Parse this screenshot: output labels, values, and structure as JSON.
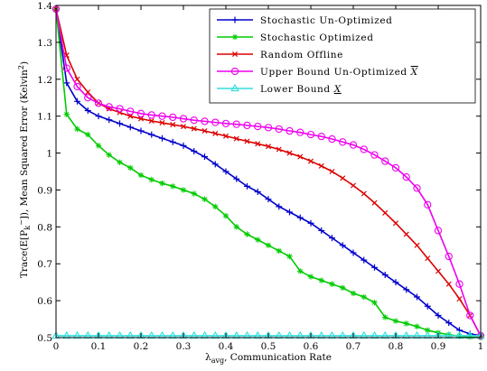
{
  "chart_data": {
    "type": "line",
    "xlabel": "λ_avg, Communication Rate",
    "xlabel_main": "λ",
    "xlabel_sub": "avg",
    "xlabel_rest": ", Communication Rate",
    "ylabel": "Trace(E[P_k^-]), Mean Squared Error (Kelvin^2)",
    "ylabel_a": "Trace(E[P",
    "ylabel_sub": "k",
    "ylabel_sup1": "−",
    "ylabel_b": "]), Mean Squared Error (Kelvin",
    "ylabel_sup2": "2",
    "ylabel_c": ")",
    "xlim": [
      0,
      1
    ],
    "ylim": [
      0.5,
      1.4
    ],
    "xticks": [
      "0",
      "0.1",
      "0.2",
      "0.3",
      "0.4",
      "0.5",
      "0.6",
      "0.7",
      "0.8",
      "0.9",
      "1"
    ],
    "yticks": [
      "0.5",
      "0.6",
      "0.7",
      "0.8",
      "0.9",
      "1",
      "1.1",
      "1.2",
      "1.3",
      "1.4"
    ],
    "grid": false,
    "legend_position": "top-right",
    "series": [
      {
        "name": "Stochastic Un-Optimized",
        "color": "#0000cc",
        "marker": "plus",
        "x": [
          0,
          0.025,
          0.05,
          0.075,
          0.1,
          0.125,
          0.15,
          0.175,
          0.2,
          0.225,
          0.25,
          0.275,
          0.3,
          0.325,
          0.35,
          0.375,
          0.4,
          0.425,
          0.45,
          0.475,
          0.5,
          0.525,
          0.55,
          0.575,
          0.6,
          0.625,
          0.65,
          0.675,
          0.7,
          0.725,
          0.75,
          0.775,
          0.8,
          0.825,
          0.85,
          0.875,
          0.9,
          0.925,
          0.95,
          0.975,
          1
        ],
        "y": [
          1.39,
          1.19,
          1.14,
          1.115,
          1.1,
          1.09,
          1.08,
          1.07,
          1.06,
          1.05,
          1.04,
          1.03,
          1.02,
          1.005,
          0.99,
          0.97,
          0.95,
          0.93,
          0.91,
          0.895,
          0.875,
          0.855,
          0.84,
          0.825,
          0.81,
          0.79,
          0.77,
          0.75,
          0.73,
          0.71,
          0.69,
          0.67,
          0.65,
          0.63,
          0.61,
          0.585,
          0.56,
          0.54,
          0.52,
          0.51,
          0.505
        ]
      },
      {
        "name": "Stochastic Optimized",
        "color": "#00cc00",
        "marker": "star",
        "x": [
          0,
          0.025,
          0.05,
          0.075,
          0.1,
          0.125,
          0.15,
          0.175,
          0.2,
          0.225,
          0.25,
          0.275,
          0.3,
          0.325,
          0.35,
          0.375,
          0.4,
          0.425,
          0.45,
          0.475,
          0.5,
          0.525,
          0.55,
          0.575,
          0.6,
          0.625,
          0.65,
          0.675,
          0.7,
          0.725,
          0.75,
          0.775,
          0.8,
          0.825,
          0.85,
          0.875,
          0.9,
          0.925,
          0.95,
          0.975,
          1
        ],
        "y": [
          1.39,
          1.105,
          1.065,
          1.05,
          1.02,
          0.995,
          0.975,
          0.96,
          0.94,
          0.928,
          0.918,
          0.91,
          0.9,
          0.89,
          0.875,
          0.855,
          0.83,
          0.8,
          0.78,
          0.765,
          0.75,
          0.735,
          0.72,
          0.68,
          0.665,
          0.655,
          0.645,
          0.635,
          0.62,
          0.61,
          0.595,
          0.555,
          0.545,
          0.538,
          0.53,
          0.52,
          0.513,
          0.508,
          0.504,
          0.502,
          0.5
        ]
      },
      {
        "name": "Random Offline",
        "color": "#dd0000",
        "marker": "x",
        "x": [
          0,
          0.025,
          0.05,
          0.075,
          0.1,
          0.125,
          0.15,
          0.175,
          0.2,
          0.225,
          0.25,
          0.275,
          0.3,
          0.325,
          0.35,
          0.375,
          0.4,
          0.425,
          0.45,
          0.475,
          0.5,
          0.525,
          0.55,
          0.575,
          0.6,
          0.625,
          0.65,
          0.675,
          0.7,
          0.725,
          0.75,
          0.775,
          0.8,
          0.825,
          0.85,
          0.875,
          0.9,
          0.925,
          0.95,
          0.975,
          1
        ],
        "y": [
          1.39,
          1.265,
          1.2,
          1.165,
          1.135,
          1.12,
          1.11,
          1.1,
          1.093,
          1.087,
          1.082,
          1.077,
          1.072,
          1.066,
          1.06,
          1.053,
          1.046,
          1.039,
          1.032,
          1.025,
          1.018,
          1.01,
          1.0,
          0.99,
          0.978,
          0.965,
          0.95,
          0.932,
          0.912,
          0.89,
          0.865,
          0.838,
          0.81,
          0.78,
          0.75,
          0.715,
          0.68,
          0.645,
          0.605,
          0.56,
          0.505
        ]
      },
      {
        "name": "Upper Bound Un-Optimized X",
        "label_main": "Upper Bound Un-Optimized ",
        "label_symbol": "X",
        "label_decoration": "overline",
        "color": "#ee00ee",
        "marker": "circle",
        "x": [
          0,
          0.025,
          0.05,
          0.075,
          0.1,
          0.125,
          0.15,
          0.175,
          0.2,
          0.225,
          0.25,
          0.275,
          0.3,
          0.325,
          0.35,
          0.375,
          0.4,
          0.425,
          0.45,
          0.475,
          0.5,
          0.525,
          0.55,
          0.575,
          0.6,
          0.625,
          0.65,
          0.675,
          0.7,
          0.725,
          0.75,
          0.775,
          0.8,
          0.825,
          0.85,
          0.875,
          0.9,
          0.925,
          0.95,
          0.975,
          1
        ],
        "y": [
          1.39,
          1.23,
          1.18,
          1.15,
          1.135,
          1.125,
          1.12,
          1.113,
          1.107,
          1.103,
          1.1,
          1.097,
          1.093,
          1.089,
          1.086,
          1.083,
          1.08,
          1.078,
          1.075,
          1.072,
          1.069,
          1.065,
          1.06,
          1.056,
          1.05,
          1.045,
          1.038,
          1.03,
          1.022,
          1.01,
          0.995,
          0.978,
          0.96,
          0.935,
          0.905,
          0.86,
          0.79,
          0.72,
          0.645,
          0.56,
          0.505
        ]
      },
      {
        "name": "Lower Bound X",
        "label_main": "Lower Bound ",
        "label_symbol": "X",
        "label_decoration": "underline",
        "color": "#33dddd",
        "marker": "triangle",
        "x": [
          0,
          0.025,
          0.05,
          0.075,
          0.1,
          0.125,
          0.15,
          0.175,
          0.2,
          0.225,
          0.25,
          0.275,
          0.3,
          0.325,
          0.35,
          0.375,
          0.4,
          0.425,
          0.45,
          0.475,
          0.5,
          0.525,
          0.55,
          0.575,
          0.6,
          0.625,
          0.65,
          0.675,
          0.7,
          0.725,
          0.75,
          0.775,
          0.8,
          0.825,
          0.85,
          0.875,
          0.9,
          0.925,
          0.95,
          0.975,
          1
        ],
        "y": [
          0.505,
          0.505,
          0.505,
          0.505,
          0.505,
          0.505,
          0.505,
          0.505,
          0.505,
          0.505,
          0.505,
          0.505,
          0.505,
          0.505,
          0.505,
          0.505,
          0.505,
          0.505,
          0.505,
          0.505,
          0.505,
          0.505,
          0.505,
          0.505,
          0.505,
          0.505,
          0.505,
          0.505,
          0.505,
          0.505,
          0.505,
          0.505,
          0.505,
          0.505,
          0.505,
          0.505,
          0.505,
          0.505,
          0.505,
          0.505,
          0.505
        ]
      }
    ]
  }
}
